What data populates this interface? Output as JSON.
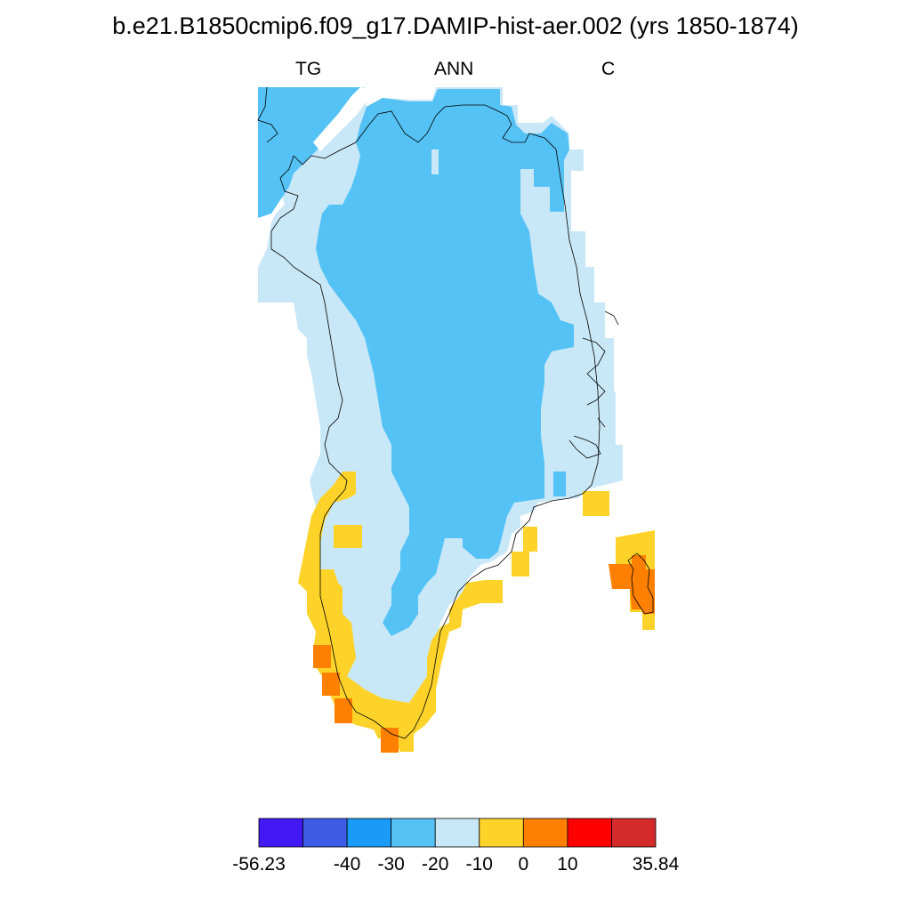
{
  "title": "b.e21.B1850cmip6.f09_g17.DAMIP-hist-aer.002 (yrs 1850-1874)",
  "subtitles": {
    "left": "TG",
    "center": "ANN",
    "right": "C"
  },
  "map": {
    "region": "Greenland",
    "variable": "TG",
    "units": "C",
    "colors": {
      "level_m20_m30": "#55c2f5",
      "level_m10_m20": "#c9e8f7",
      "level_0_m10": "#fdd329",
      "level_0_10": "#ff8000",
      "coastline": "#000000"
    }
  },
  "colorbar": {
    "colors": [
      "#4218f5",
      "#3d5de6",
      "#1a9bf7",
      "#55c2f5",
      "#c9e8f7",
      "#fdd329",
      "#ff8000",
      "#ff0000",
      "#d42a2a"
    ],
    "labels": [
      "-56.23",
      "-40",
      "-30",
      "-20",
      "-10",
      "0",
      "10",
      "35.84"
    ],
    "boundaries": [
      -56.23,
      -50,
      -40,
      -30,
      -20,
      -10,
      0,
      10,
      20,
      35.84
    ]
  }
}
